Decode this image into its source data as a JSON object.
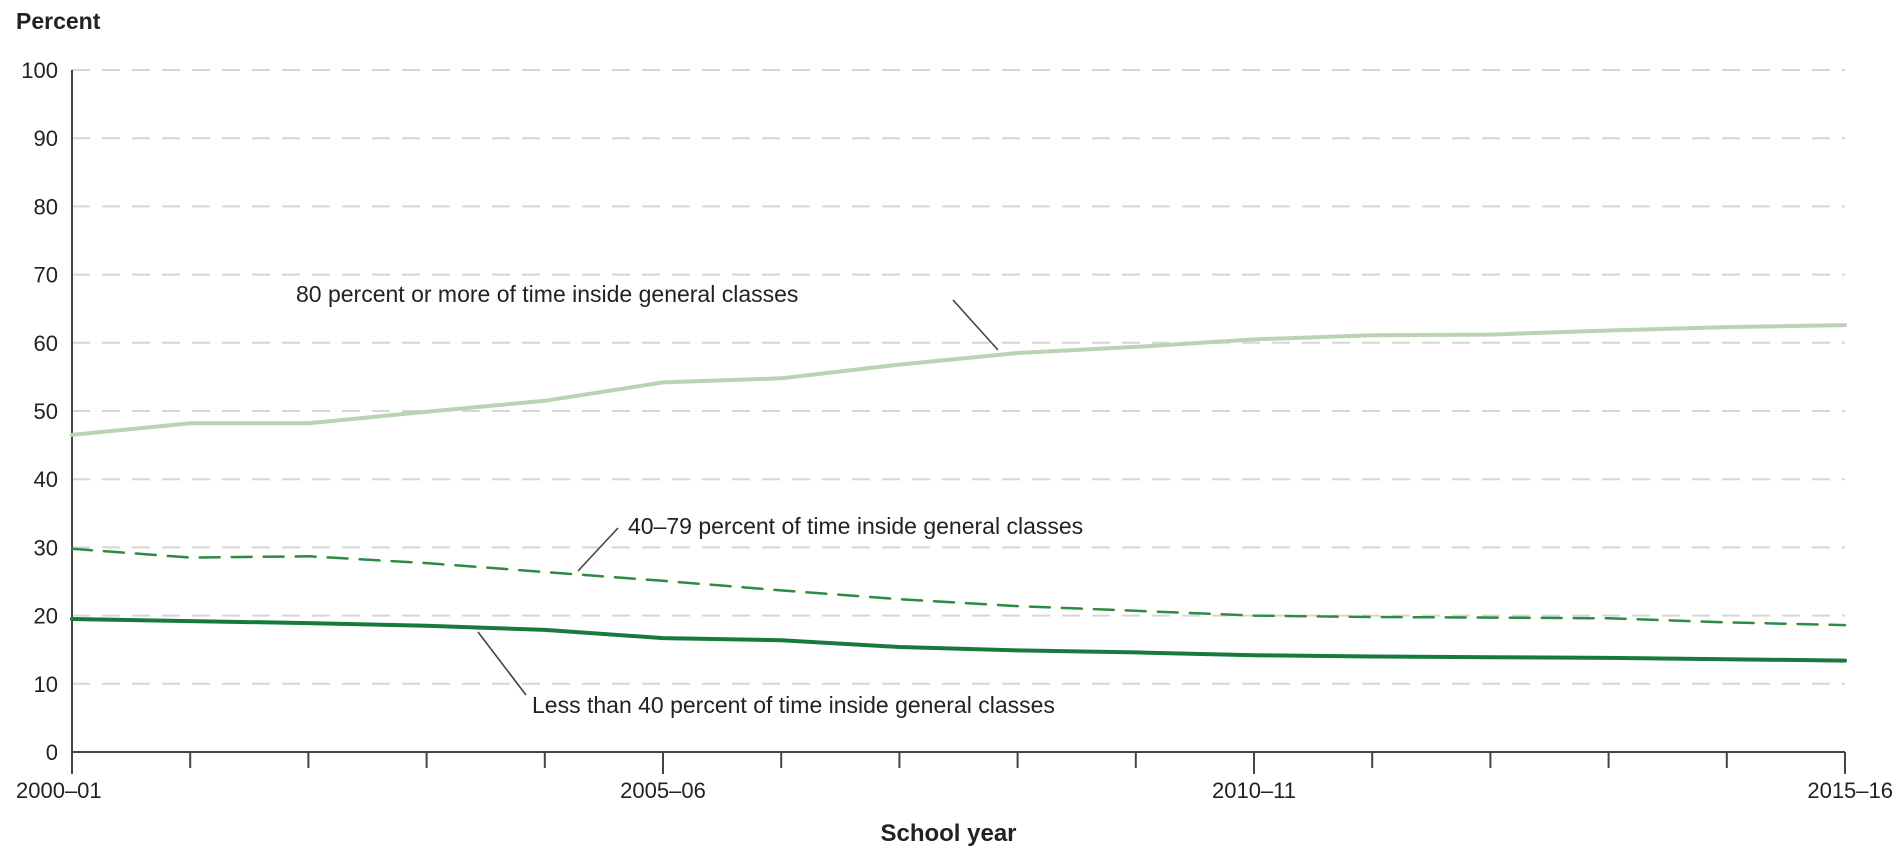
{
  "chart_data": {
    "type": "line",
    "ylabel": "Percent",
    "xlabel": "School year",
    "ylim": [
      0,
      100
    ],
    "yticks": [
      0,
      10,
      20,
      30,
      40,
      50,
      60,
      70,
      80,
      90,
      100
    ],
    "x_tick_labels": [
      "2000–01",
      "2005–06",
      "2010–11",
      "2015–16"
    ],
    "x_tick_label_indices": [
      0,
      5,
      10,
      15
    ],
    "categories": [
      "2000–01",
      "2001–02",
      "2002–03",
      "2003–04",
      "2004–05",
      "2005–06",
      "2006–07",
      "2007–08",
      "2008–09",
      "2009–10",
      "2010–11",
      "2011–12",
      "2012–13",
      "2013–14",
      "2014–15",
      "2015–16"
    ],
    "grid": "horizontal-dashed",
    "series": [
      {
        "name": "80 percent or more of time inside general classes",
        "style": "solid-light",
        "color": "#b9d3b4",
        "values": [
          46.5,
          48.2,
          48.2,
          49.9,
          51.5,
          54.2,
          54.8,
          56.8,
          58.5,
          59.4,
          60.5,
          61.1,
          61.2,
          61.8,
          62.3,
          62.6
        ]
      },
      {
        "name": "40–79 percent of time inside general classes",
        "style": "dashed",
        "color": "#2f8a46",
        "values": [
          29.8,
          28.5,
          28.7,
          27.7,
          26.4,
          25.1,
          23.7,
          22.4,
          21.4,
          20.7,
          20.0,
          19.8,
          19.7,
          19.6,
          19.0,
          18.6
        ]
      },
      {
        "name": "Less than 40 percent of time inside general classes",
        "style": "solid-dark",
        "color": "#167a3a",
        "values": [
          19.5,
          19.2,
          18.9,
          18.5,
          17.9,
          16.7,
          16.4,
          15.4,
          14.9,
          14.6,
          14.2,
          14.0,
          13.9,
          13.8,
          13.6,
          13.4
        ]
      }
    ]
  }
}
